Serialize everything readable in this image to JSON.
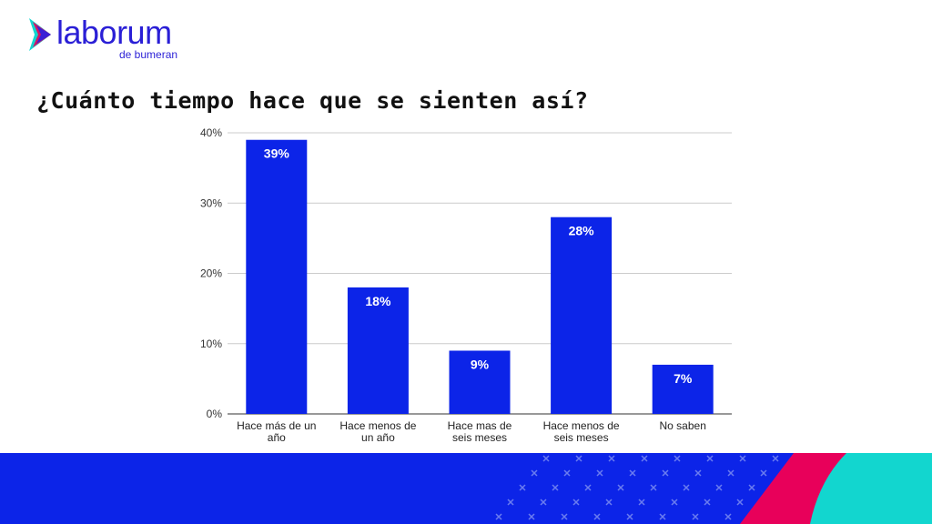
{
  "brand": {
    "name": "laborum",
    "tagline": "de bumeran",
    "colors": {
      "blue": "#0c24e8",
      "pink": "#e8005a",
      "teal": "#12d6cf"
    }
  },
  "title": "¿Cuánto tiempo hace que se sienten así?",
  "chart_data": {
    "type": "bar",
    "title": "¿Cuánto tiempo hace que se sienten así?",
    "categories": [
      [
        "Hace más de un",
        "año"
      ],
      [
        "Hace menos de",
        "un año"
      ],
      [
        "Hace mas de",
        "seis meses"
      ],
      [
        "Hace menos de",
        "seis meses"
      ],
      [
        "No saben"
      ]
    ],
    "values": [
      39,
      18,
      9,
      28,
      7
    ],
    "data_labels": [
      "39%",
      "18%",
      "9%",
      "28%",
      "7%"
    ],
    "ylim": [
      0,
      40
    ],
    "yticks": [
      0,
      10,
      20,
      30,
      40
    ],
    "ytick_labels": [
      "0%",
      "10%",
      "20%",
      "30%",
      "40%"
    ],
    "grid": true,
    "bar_color": "#0c24e8",
    "xlabel": "",
    "ylabel": ""
  }
}
